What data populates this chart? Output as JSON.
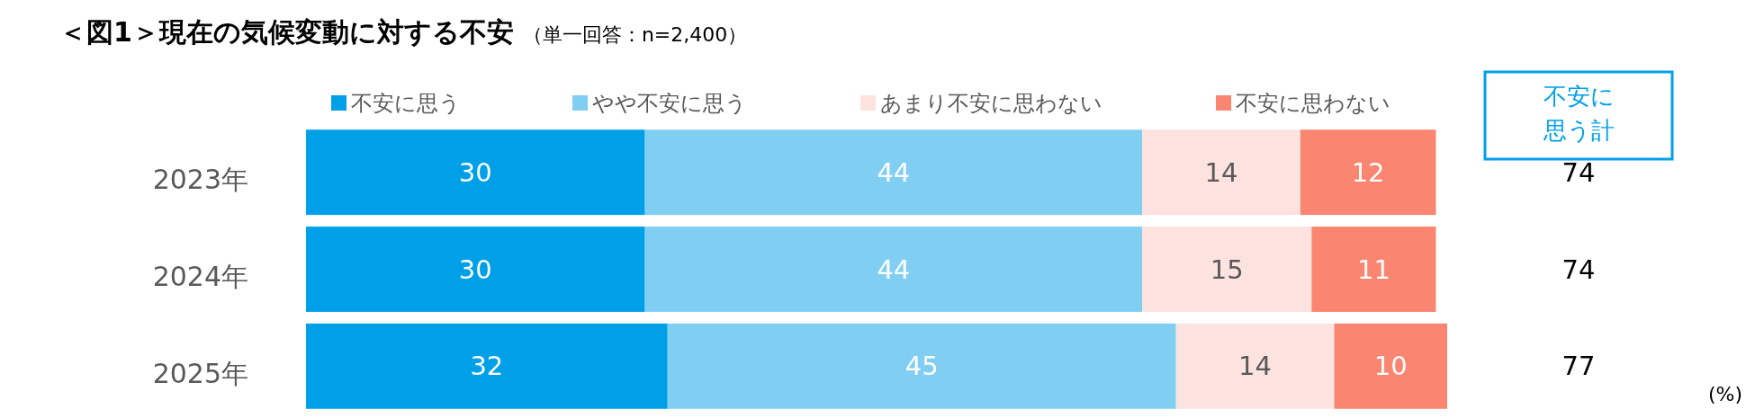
{
  "chart_data": {
    "type": "bar",
    "orientation": "horizontal",
    "stacked": true,
    "title": "＜図1＞現在の気候変動に対する不安",
    "subtitle": "（単一回答：n=2,400）",
    "categories": [
      "2023年",
      "2024年",
      "2025年"
    ],
    "series": [
      {
        "name": "不安に思う",
        "color": "#00a0e9",
        "values": [
          30,
          30,
          32
        ]
      },
      {
        "name": "やや不安に思う",
        "color": "#80cff3",
        "values": [
          44,
          44,
          45
        ]
      },
      {
        "name": "あまり不安に思わない",
        "color": "#fde3df",
        "values": [
          14,
          15,
          14
        ]
      },
      {
        "name": "不安に思わない",
        "color": "#fa8570",
        "values": [
          12,
          11,
          10
        ]
      }
    ],
    "data_labels": true,
    "legend": "top",
    "annotations": [
      "不安に思う計",
      "74",
      "74",
      "77",
      "(%)"
    ]
  }
}
